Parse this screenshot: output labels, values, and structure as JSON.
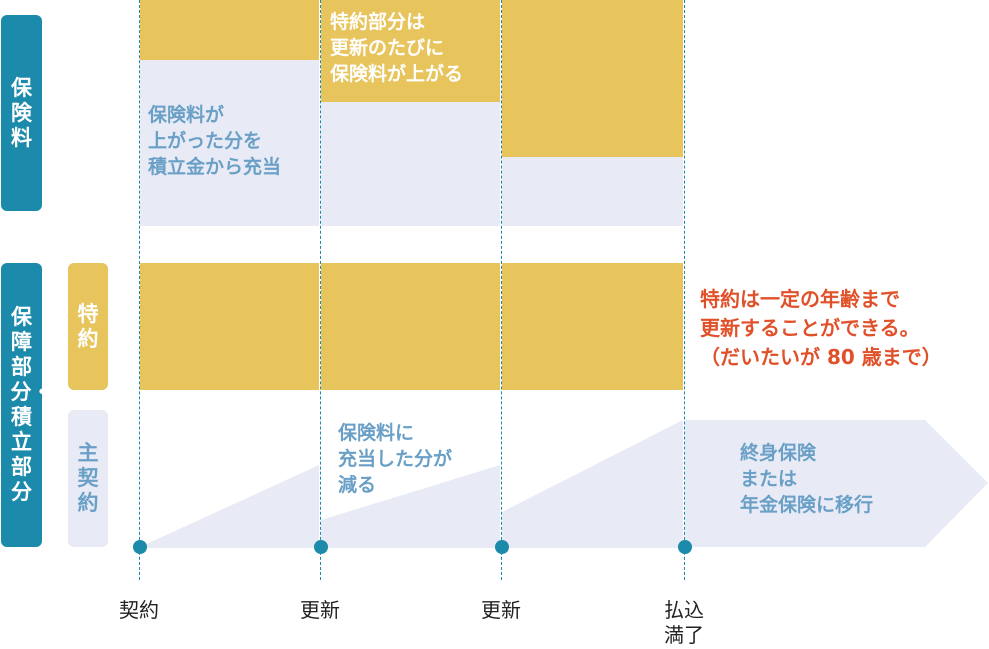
{
  "side_labels": {
    "premium": "保険料",
    "coverage_savings": "保障部分・積立部分",
    "rider": "特約",
    "main_contract": "主契約"
  },
  "notes": {
    "savings_cover": "保険料が\n上がった分を\n積立金から充当",
    "rider_renewal": "特約部分は\n更新のたびに\n保険料が上がる",
    "rider_age_limit": "特約は一定の年齢まで\n更新することができる。\n（だいたいが 80 歳まで）",
    "savings_decrease": "保険料に\n充当した分が\n減る",
    "transition": "終身保険\nまたは\n年金保険に移行"
  },
  "timeline": {
    "contract": "契約",
    "renewal_1": "更新",
    "renewal_2": "更新",
    "paid_up": "払込\n満了"
  },
  "colors": {
    "teal": "#1c8aaa",
    "gold": "#e8c45c",
    "pale": "#e8ebf6",
    "red": "#e0512a",
    "note_blue": "#6a9fc6"
  }
}
